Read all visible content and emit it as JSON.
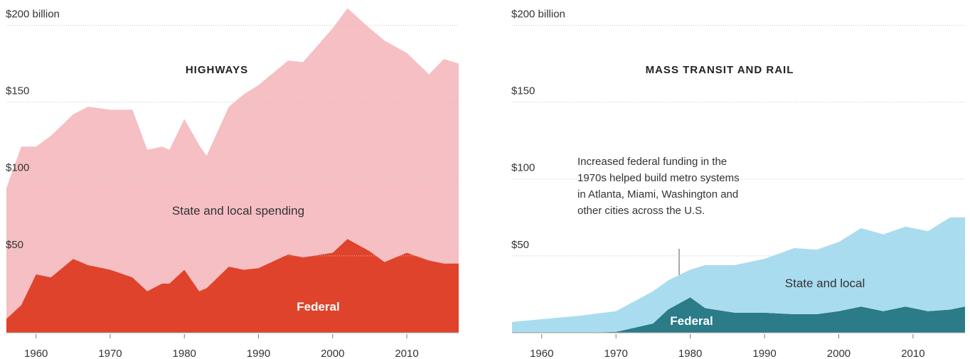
{
  "chart_data": [
    {
      "type": "area",
      "stacked": true,
      "title": "HIGHWAYS",
      "x": [
        1956,
        1958,
        1960,
        1962,
        1965,
        1967,
        1970,
        1973,
        1975,
        1977,
        1978,
        1980,
        1982,
        1983,
        1986,
        1988,
        1990,
        1994,
        1996,
        2000,
        2002,
        2005,
        2007,
        2010,
        2013,
        2015,
        2017
      ],
      "series": [
        {
          "name": "Federal",
          "color": "#e0432b",
          "values": [
            9,
            18,
            38,
            36,
            48,
            44,
            41,
            36,
            27,
            32,
            32,
            41,
            27,
            29,
            43,
            41,
            42,
            51,
            49,
            52,
            61,
            53,
            46,
            52,
            47,
            45,
            45
          ]
        },
        {
          "name": "State and local spending",
          "color": "#f5bfc3",
          "values": [
            85,
            103,
            83,
            92,
            94,
            103,
            104,
            109,
            92,
            89,
            87,
            98,
            95,
            86,
            104,
            114,
            119,
            126,
            127,
            146,
            150,
            145,
            144,
            130,
            121,
            133,
            130
          ]
        }
      ],
      "xlim": [
        1956,
        2017
      ],
      "ylim": [
        0,
        215
      ],
      "xticks": [
        1960,
        1970,
        1980,
        1990,
        2000,
        2010
      ],
      "yticks": [
        {
          "value": 50,
          "label": "$50"
        },
        {
          "value": 100,
          "label": "$100"
        },
        {
          "value": 150,
          "label": "$150"
        },
        {
          "value": 200,
          "label": "$200 billion"
        }
      ],
      "grid": true
    },
    {
      "type": "area",
      "stacked": true,
      "title": "MASS TRANSIT AND RAIL",
      "x": [
        1956,
        1965,
        1970,
        1975,
        1977,
        1980,
        1982,
        1986,
        1990,
        1994,
        1997,
        2000,
        2003,
        2006,
        2009,
        2012,
        2015,
        2017
      ],
      "series": [
        {
          "name": "Federal",
          "color": "#2b7b89",
          "values": [
            0,
            0,
            0.5,
            6,
            15,
            23,
            16,
            13,
            13,
            12,
            12,
            14,
            17,
            14,
            17,
            14,
            15,
            17
          ]
        },
        {
          "name": "State and local",
          "color": "#a9dcef",
          "values": [
            7,
            11,
            13.5,
            21,
            19,
            18,
            28,
            31,
            35,
            43,
            42,
            45,
            51,
            50,
            52,
            52,
            60,
            58
          ]
        }
      ],
      "xlim": [
        1956,
        2017
      ],
      "ylim": [
        0,
        215
      ],
      "xticks": [
        1960,
        1970,
        1980,
        1990,
        2000,
        2010
      ],
      "yticks": [
        {
          "value": 50,
          "label": "$50"
        },
        {
          "value": 100,
          "label": "$100"
        },
        {
          "value": 150,
          "label": "$150"
        },
        {
          "value": 200,
          "label": "$200 billion"
        }
      ],
      "grid": true,
      "annotation": [
        "Increased federal funding in the",
        "1970s helped build metro systems",
        "in Atlanta, Miami, Washington and",
        "other cities across the U.S."
      ]
    }
  ]
}
